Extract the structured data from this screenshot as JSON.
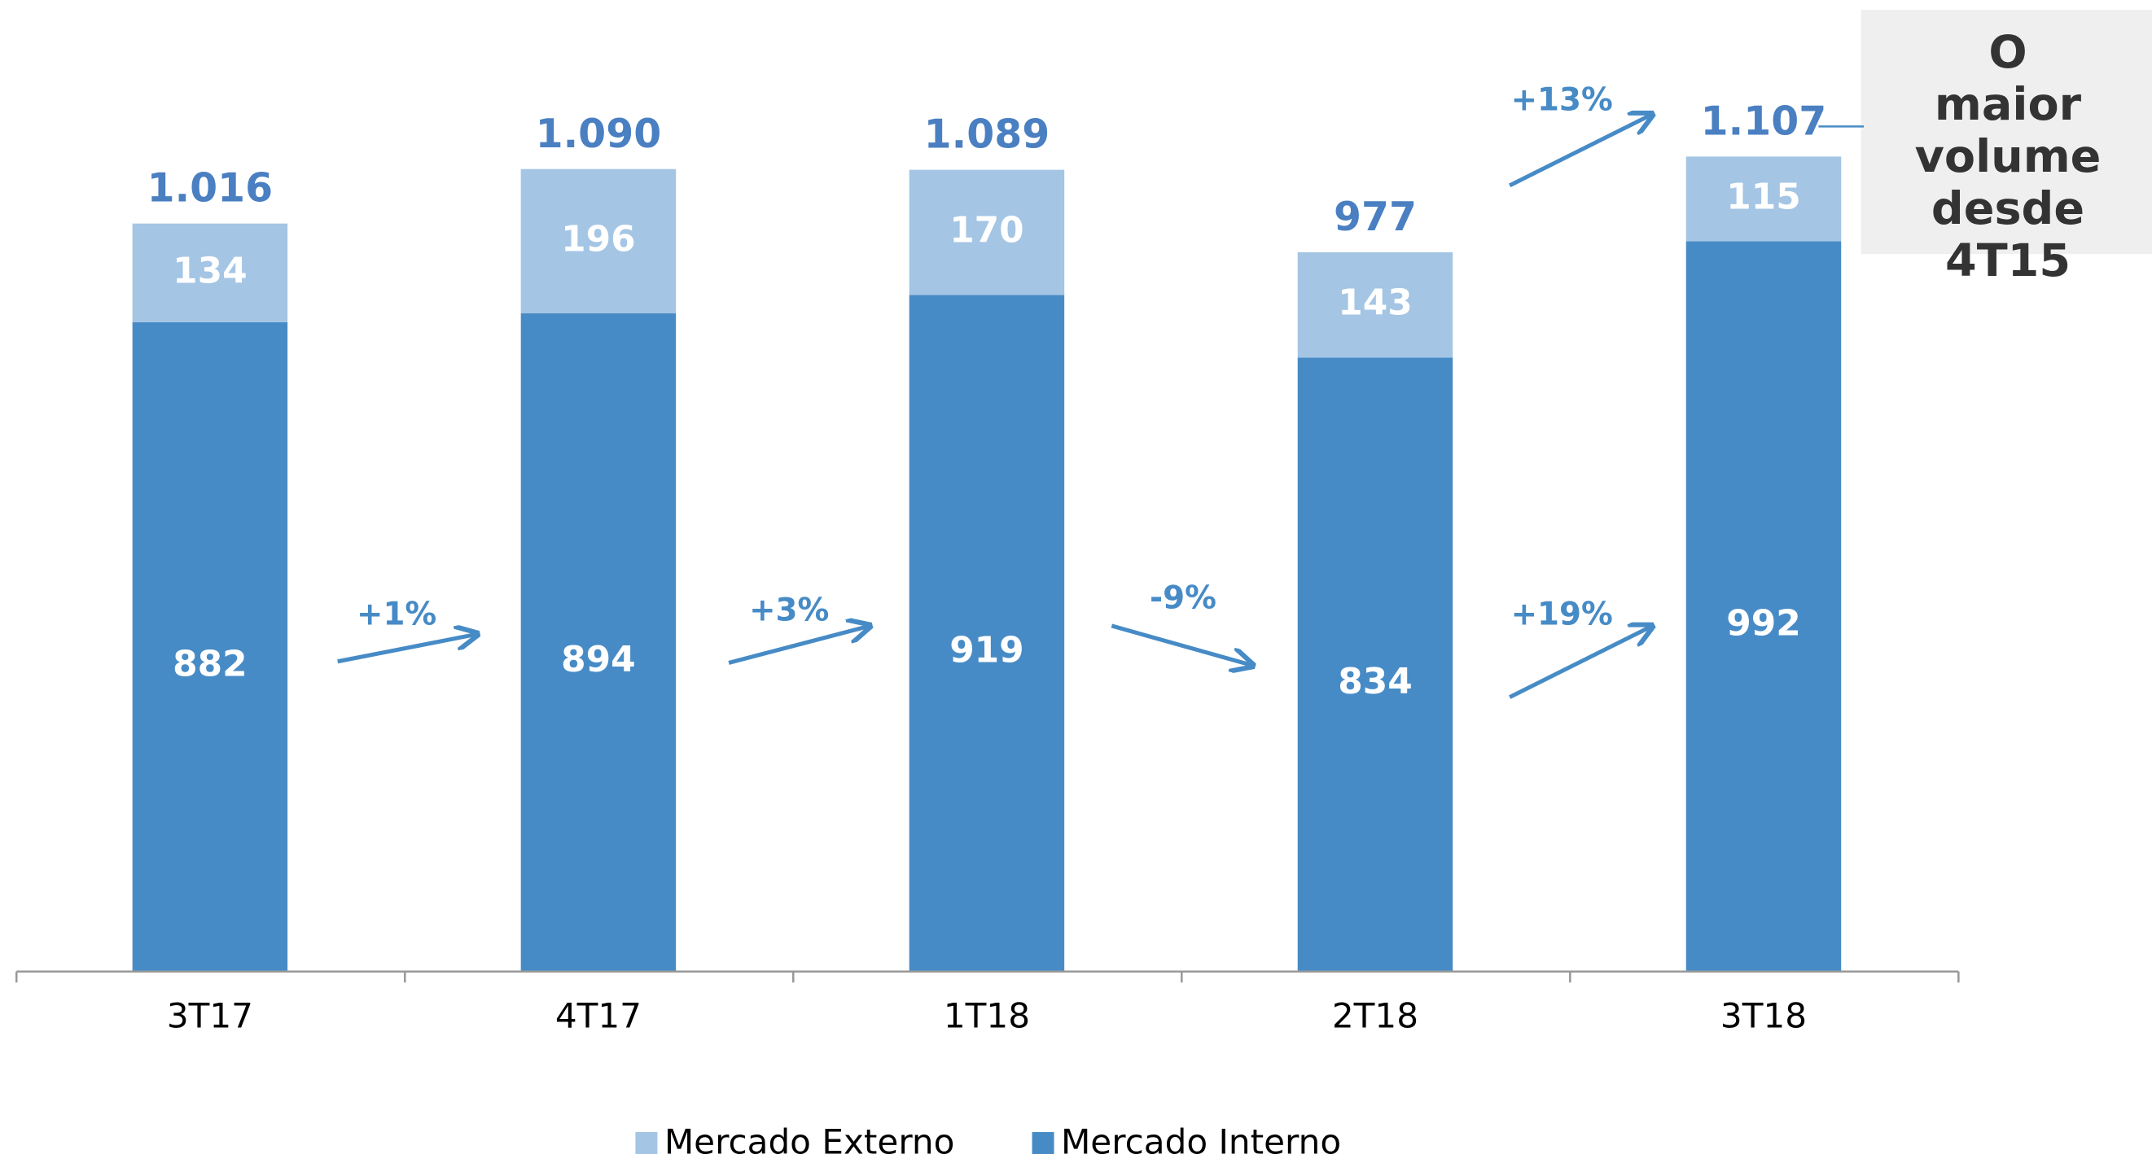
{
  "chart_data": {
    "type": "stacked_bar",
    "categories": [
      "3T17",
      "4T17",
      "1T18",
      "2T18",
      "3T18"
    ],
    "series": [
      {
        "name": "Mercado Interno",
        "color": "#478bc6",
        "values": [
          882,
          894,
          919,
          834,
          992
        ]
      },
      {
        "name": "Mercado Externo",
        "color": "#a4c5e4",
        "values": [
          134,
          196,
          170,
          143,
          115
        ]
      }
    ],
    "totals": {
      "values": [
        1016,
        1090,
        1089,
        977,
        1107
      ],
      "value_labels": [
        "1.016",
        "1.090",
        "1.089",
        "977",
        "1.107"
      ],
      "color": "#4a7fc1"
    },
    "ylim": [
      0,
      1200
    ],
    "annotations": [
      "+1%",
      "+3%",
      "-9%",
      "+19%",
      "+13%"
    ],
    "callout": "O maior volume desde 4T15"
  }
}
